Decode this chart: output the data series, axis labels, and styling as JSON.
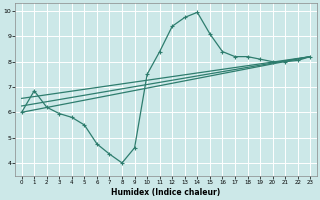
{
  "title": "",
  "xlabel": "Humidex (Indice chaleur)",
  "bg_color": "#cce8e8",
  "grid_color": "#ffffff",
  "line_color": "#2e7d6e",
  "xlim": [
    -0.5,
    23.5
  ],
  "ylim": [
    3.5,
    10.3
  ],
  "xticks": [
    0,
    1,
    2,
    3,
    4,
    5,
    6,
    7,
    8,
    9,
    10,
    11,
    12,
    13,
    14,
    15,
    16,
    17,
    18,
    19,
    20,
    21,
    22,
    23
  ],
  "yticks": [
    4,
    5,
    6,
    7,
    8,
    9,
    10
  ],
  "line1_x": [
    0,
    1,
    2,
    3,
    4,
    5,
    6,
    7,
    8,
    9,
    10,
    11,
    12,
    13,
    14,
    15,
    16,
    17,
    18,
    19,
    20,
    21,
    22,
    23
  ],
  "line1_y": [
    6.0,
    6.85,
    6.2,
    5.95,
    5.8,
    5.5,
    4.75,
    4.35,
    4.0,
    4.6,
    7.5,
    8.4,
    9.4,
    9.75,
    9.95,
    9.1,
    8.4,
    8.2,
    8.2,
    8.1,
    8.0,
    8.0,
    8.05,
    8.2
  ],
  "line2_x": [
    0,
    23
  ],
  "line2_y": [
    6.55,
    8.2
  ],
  "line3_x": [
    0,
    23
  ],
  "line3_y": [
    6.25,
    8.2
  ],
  "line4_x": [
    0,
    23
  ],
  "line4_y": [
    6.0,
    8.2
  ]
}
